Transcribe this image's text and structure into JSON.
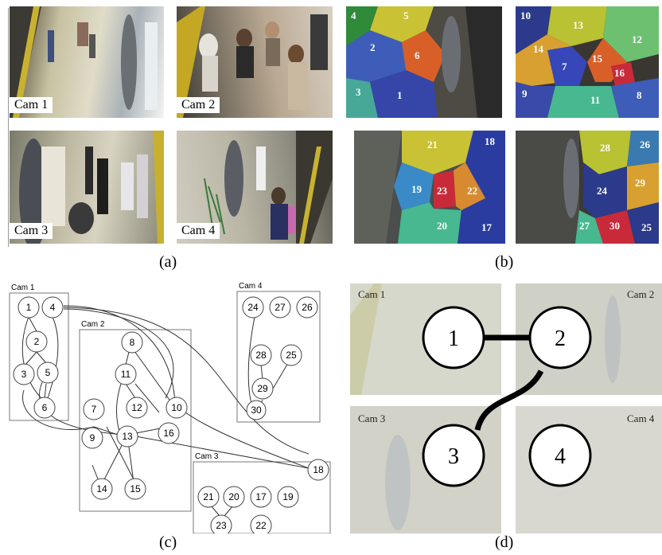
{
  "panel_a": {
    "label": "(a)",
    "cams": [
      {
        "label": "Cam 1"
      },
      {
        "label": "Cam 2"
      },
      {
        "label": "Cam 3"
      },
      {
        "label": "Cam 4"
      }
    ]
  },
  "panel_b": {
    "label": "(b)",
    "views": [
      {
        "regions": [
          "4",
          "5",
          "2",
          "6",
          "3",
          "1"
        ]
      },
      {
        "regions": [
          "10",
          "13",
          "12",
          "14",
          "7",
          "15",
          "16",
          "9",
          "11",
          "8"
        ]
      },
      {
        "regions": [
          "21",
          "18",
          "23",
          "22",
          "19",
          "20",
          "17"
        ]
      },
      {
        "regions": [
          "28",
          "26",
          "24",
          "29",
          "27",
          "30",
          "25"
        ]
      }
    ]
  },
  "panel_c": {
    "label": "(c)",
    "boxes": [
      {
        "title": "Cam 1",
        "nodes": [
          "1",
          "4",
          "2",
          "3",
          "5",
          "6"
        ]
      },
      {
        "title": "Cam 2",
        "nodes": [
          "8",
          "11",
          "7",
          "12",
          "10",
          "9",
          "13",
          "16",
          "14",
          "15"
        ]
      },
      {
        "title": "Cam 3",
        "nodes": [
          "21",
          "20",
          "17",
          "19",
          "18",
          "23",
          "22"
        ]
      },
      {
        "title": "Cam 4",
        "nodes": [
          "24",
          "27",
          "26",
          "28",
          "25",
          "29",
          "30"
        ]
      }
    ]
  },
  "panel_d": {
    "label": "(d)",
    "cams": [
      "Cam 1",
      "Cam 2",
      "Cam 3",
      "Cam 4"
    ],
    "nodes": [
      "1",
      "2",
      "3",
      "4"
    ]
  }
}
